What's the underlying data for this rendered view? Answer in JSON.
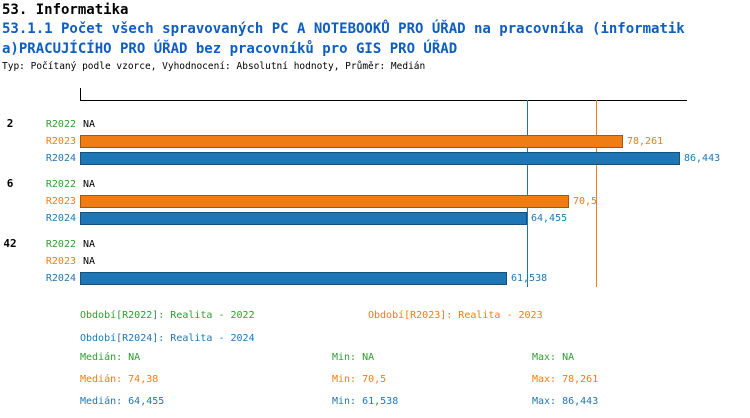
{
  "header": {
    "section": "53. Informatika",
    "indicator_line1": "53.1.1 Počet všech spravovaných PC A NOTEBOOKŮ PRO ÚŘAD na pracovníka (informatik",
    "indicator_line2": "a)PRACUJÍCÍHO PRO ÚŘAD bez pracovníků pro GIS PRO ÚŘAD",
    "meta": "Typ: Počítaný podle vzorce, Vyhodnocení: Absolutní hodnoty, Průměr: Medián"
  },
  "colors": {
    "title_blue": "#0D5EC0",
    "axis": "#000000",
    "na_text": "#000000"
  },
  "chart_data": {
    "type": "bar",
    "orientation": "horizontal",
    "title": "53.1.1 Počet všech spravovaných PC A NOTEBOOKŮ PRO ÚŘAD na pracovníka (informatika)PRACUJÍCÍHO PRO ÚŘAD bez pracovníků pro GIS PRO ÚŘAD",
    "xlim": [
      0,
      86.443
    ],
    "grid": false,
    "legend_position": "bottom",
    "categories": [
      "2",
      "6",
      "42"
    ],
    "series": [
      {
        "name": "R2022",
        "color": "#2E9E2E",
        "values": [
          null,
          null,
          null
        ],
        "labels": [
          "NA",
          "NA",
          "NA"
        ]
      },
      {
        "name": "R2023",
        "color": "#EF7D13",
        "values": [
          78.261,
          70.5,
          null
        ],
        "labels": [
          "78,261",
          "70,5",
          "NA"
        ]
      },
      {
        "name": "R2024",
        "color": "#1F76B4",
        "values": [
          86.443,
          64.455,
          61.538
        ],
        "labels": [
          "86,443",
          "64,455",
          "61,538"
        ]
      }
    ],
    "median_lines": [
      {
        "series": "R2023",
        "value": 74.38
      },
      {
        "series": "R2024",
        "value": 64.455
      }
    ],
    "legend": [
      "Období[R2022]: Realita - 2022",
      "Období[R2023]: Realita - 2023",
      "Období[R2024]: Realita - 2024"
    ],
    "stats": [
      {
        "median": "Medián: NA",
        "min": "Min: NA",
        "max": "Max: NA"
      },
      {
        "median": "Medián: 74,38",
        "min": "Min: 70,5",
        "max": "Max: 78,261"
      },
      {
        "median": "Medián: 64,455",
        "min": "Min: 61,538",
        "max": "Max: 86,443"
      }
    ]
  }
}
